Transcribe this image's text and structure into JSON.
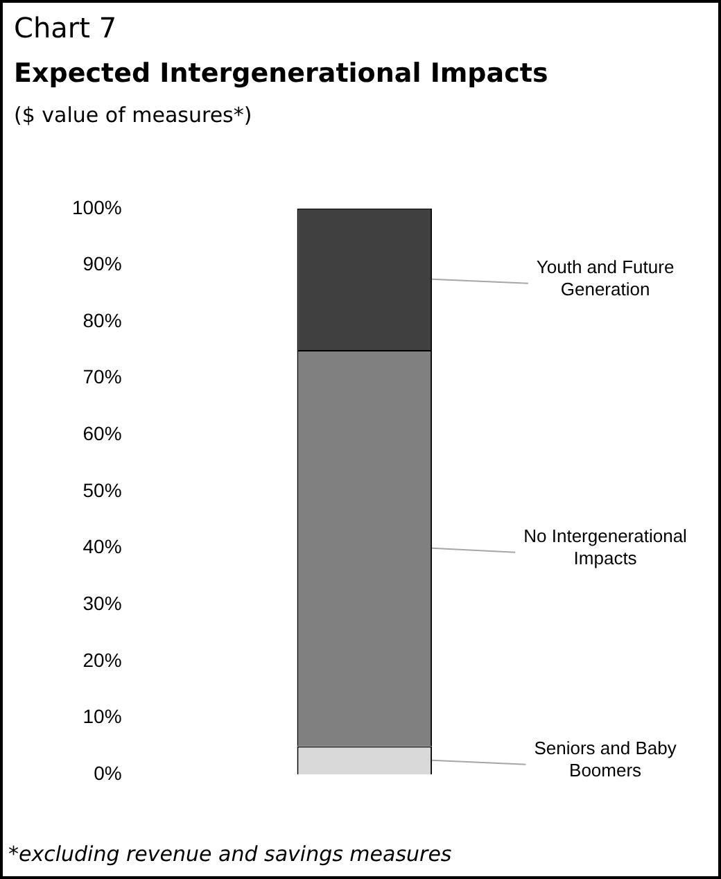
{
  "chart_data": {
    "type": "bar",
    "stacked": true,
    "title": "Expected Intergenerational Impacts",
    "subtitle": "($ value of measures*)",
    "annotations": [
      "Chart 7",
      "*excluding revenue and savings measures"
    ],
    "categories": [
      null
    ],
    "series": [
      {
        "name": "Seniors and Baby Boomers",
        "color": "#d9d9d9",
        "values": [
          5
        ]
      },
      {
        "name": "No Intergenerational Impacts",
        "color": "#808080",
        "values": [
          70
        ]
      },
      {
        "name": "Youth and Future Generation",
        "color": "#404040",
        "values": [
          25
        ]
      }
    ],
    "ylim": [
      0,
      100
    ],
    "yticks": [
      {
        "value": 0,
        "label": "0%"
      },
      {
        "value": 10,
        "label": "10%"
      },
      {
        "value": 20,
        "label": "20%"
      },
      {
        "value": 30,
        "label": "30%"
      },
      {
        "value": 40,
        "label": "40%"
      },
      {
        "value": 50,
        "label": "50%"
      },
      {
        "value": 60,
        "label": "60%"
      },
      {
        "value": 70,
        "label": "70%"
      },
      {
        "value": 80,
        "label": "80%"
      },
      {
        "value": 90,
        "label": "90%"
      },
      {
        "value": 100,
        "label": "100%"
      }
    ],
    "grid": false,
    "legend": false,
    "tick_labels": "y"
  }
}
